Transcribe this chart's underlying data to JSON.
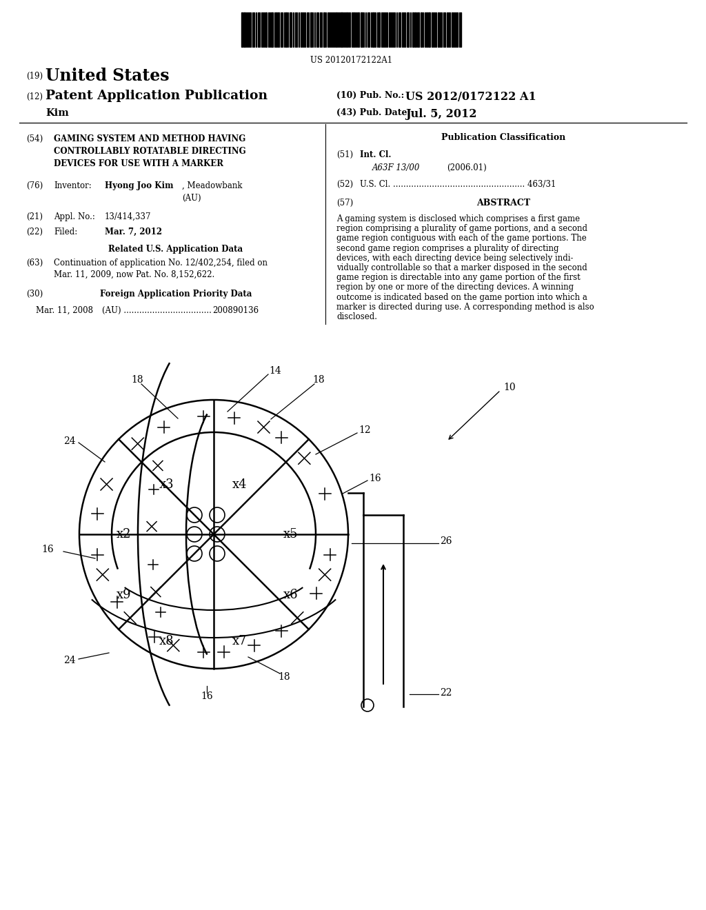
{
  "bg_color": "#ffffff",
  "barcode_text": "US 20120172122A1",
  "abstract_lines": [
    "A gaming system is disclosed which comprises a first game",
    "region comprising a plurality of game portions, and a second",
    "game region contiguous with each of the game portions. The",
    "second game region comprises a plurality of directing",
    "devices, with each directing device being selectively indi-",
    "vidually controllable so that a marker disposed in the second",
    "game region is directable into any game portion of the first",
    "region by one or more of the directing devices. A winning",
    "outcome is indicated based on the game portion into which a",
    "marker is directed during use. A corresponding method is also",
    "disclosed."
  ]
}
